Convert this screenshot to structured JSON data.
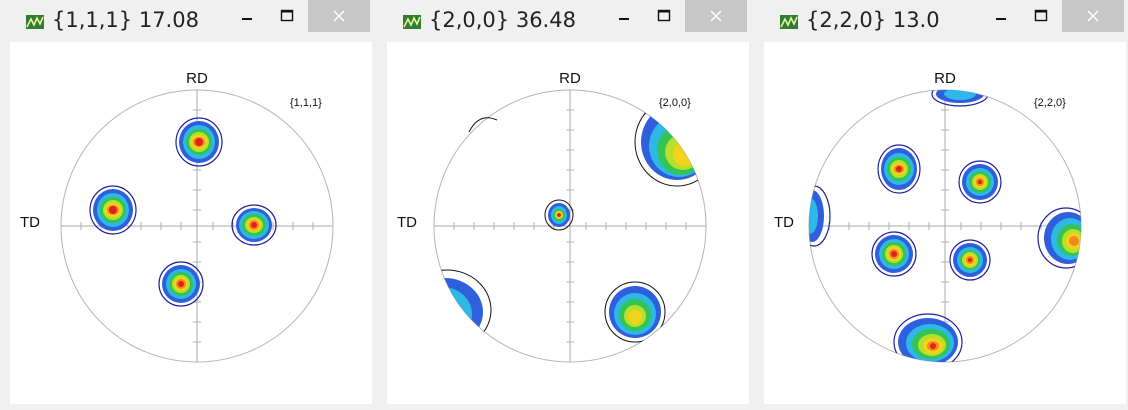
{
  "windows": [
    {
      "title": "{1,1,1} 17.08",
      "plane_label": "{1,1,1}",
      "rd_label": "RD",
      "td_label": "TD",
      "buttons": {
        "minimize_icon": "minimize-icon",
        "maximize_icon": "maximize-icon",
        "close_icon": "close-icon"
      }
    },
    {
      "title": "{2,0,0} 36.48",
      "plane_label": "{2,0,0}",
      "rd_label": "RD",
      "td_label": "TD",
      "buttons": {
        "minimize_icon": "minimize-icon",
        "maximize_icon": "maximize-icon",
        "close_icon": "close-icon"
      }
    },
    {
      "title": "{2,2,0} 13.0",
      "plane_label": "{2,2,0}",
      "rd_label": "RD",
      "td_label": "TD",
      "buttons": {
        "minimize_icon": "minimize-icon",
        "maximize_icon": "maximize-icon",
        "close_icon": "close-icon"
      }
    }
  ],
  "colors": {
    "contour_ring": [
      "#1f1f9e",
      "#2f5fdc",
      "#2db8e8",
      "#33c455",
      "#b8e02a",
      "#f2d21c",
      "#f08a1a",
      "#e32020"
    ],
    "circle": "#b5b5b5",
    "axis": "#a8a8a8",
    "close_bg": "#c7c7c7"
  }
}
